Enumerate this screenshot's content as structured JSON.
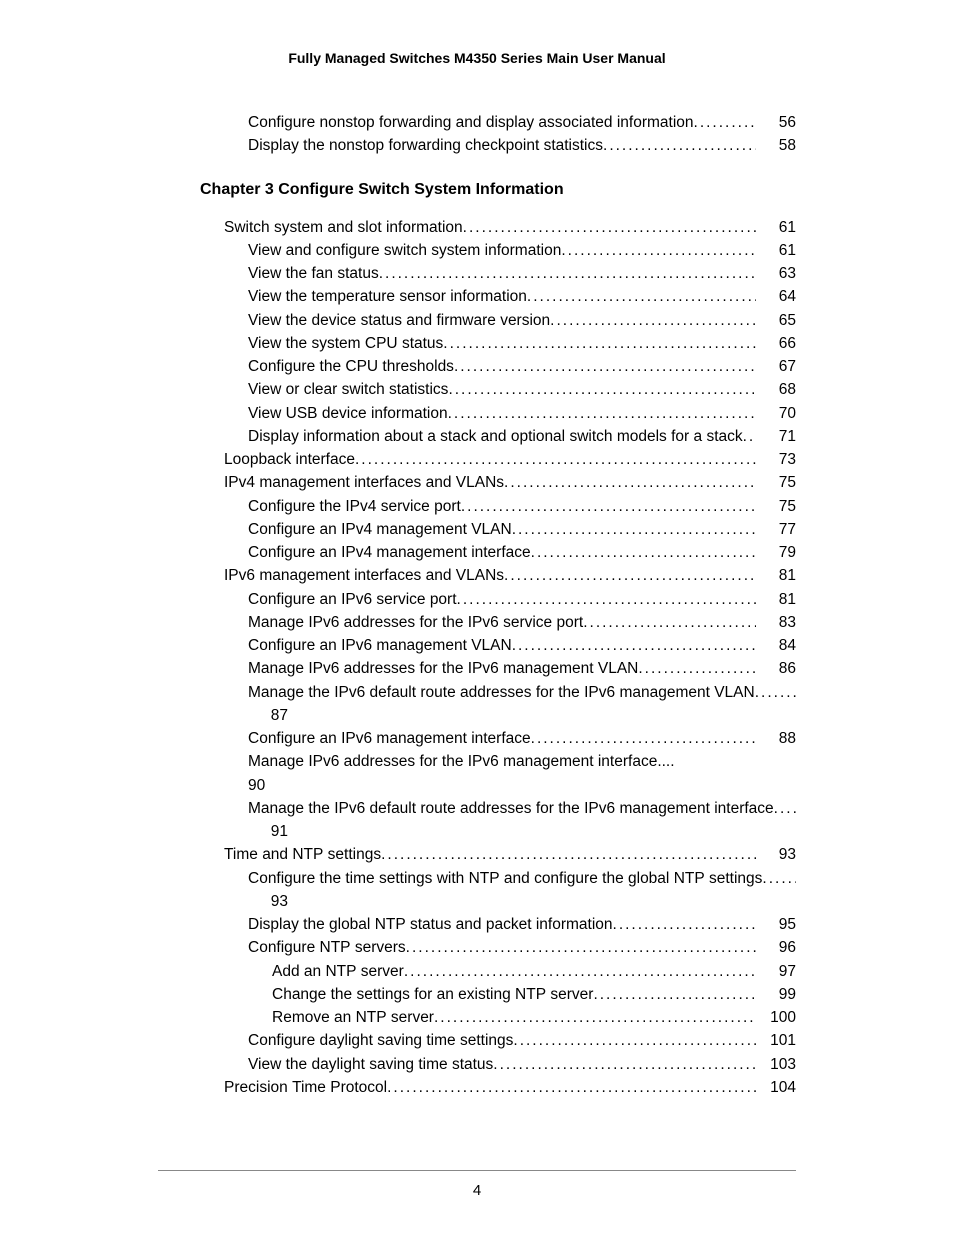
{
  "header": {
    "title": "Fully Managed Switches M4350 Series Main User Manual"
  },
  "preEntries": [
    {
      "text": "Configure nonstop forwarding and display associated information",
      "page": "56",
      "indent": 1,
      "leader": true
    },
    {
      "text": "Display the nonstop forwarding checkpoint statistics",
      "page": "58",
      "indent": 1,
      "leader": true
    }
  ],
  "chapter": {
    "title": "Chapter 3 Configure Switch System Information"
  },
  "entries": [
    {
      "text": "Switch system and slot information",
      "page": "61",
      "indent": 0,
      "leader": true
    },
    {
      "text": "View and configure switch system information",
      "page": "61",
      "indent": 1,
      "leader": true
    },
    {
      "text": "View the fan status",
      "page": "63",
      "indent": 1,
      "leader": true
    },
    {
      "text": "View the temperature sensor information",
      "page": "64",
      "indent": 1,
      "leader": true
    },
    {
      "text": "View the device status and firmware version",
      "page": "65",
      "indent": 1,
      "leader": true
    },
    {
      "text": "View the system CPU status",
      "page": "66",
      "indent": 1,
      "leader": true
    },
    {
      "text": "Configure the CPU thresholds",
      "page": "67",
      "indent": 1,
      "leader": true
    },
    {
      "text": "View or clear switch statistics",
      "page": "68",
      "indent": 1,
      "leader": true
    },
    {
      "text": "View USB device information",
      "page": "70",
      "indent": 1,
      "leader": true
    },
    {
      "text": "Display information about a stack and optional switch models for a stack",
      "page": "71",
      "indent": 1,
      "leader": true
    },
    {
      "text": "Loopback interface",
      "page": "73",
      "indent": 0,
      "leader": true
    },
    {
      "text": "IPv4 management interfaces and VLANs",
      "page": "75",
      "indent": 0,
      "leader": true
    },
    {
      "text": "Configure the IPv4 service port",
      "page": "75",
      "indent": 1,
      "leader": true
    },
    {
      "text": "Configure an IPv4 management VLAN",
      "page": "77",
      "indent": 1,
      "leader": true
    },
    {
      "text": "Configure an IPv4 management interface",
      "page": "79",
      "indent": 1,
      "leader": true
    },
    {
      "text": "IPv6 management interfaces and VLANs",
      "page": "81",
      "indent": 0,
      "leader": true
    },
    {
      "text": "Configure an IPv6 service port",
      "page": "81",
      "indent": 1,
      "leader": true
    },
    {
      "text": "Manage IPv6 addresses for the IPv6 service port",
      "page": "83",
      "indent": 1,
      "leader": true
    },
    {
      "text": "Configure an IPv6 management VLAN",
      "page": "84",
      "indent": 1,
      "leader": true
    },
    {
      "text": "Manage IPv6 addresses for the IPv6 management VLAN",
      "page": "86",
      "indent": 1,
      "leader": true
    },
    {
      "text": "Manage the IPv6 default route addresses for the IPv6 management VLAN",
      "page": "87",
      "indent": 1,
      "leader": true
    },
    {
      "text": "Configure an IPv6 management interface",
      "page": "88",
      "indent": 1,
      "leader": true
    },
    {
      "text": "Manage IPv6 addresses for the IPv6 management interface",
      "page": "90",
      "indent": 1,
      "leader": false
    },
    {
      "text": "Manage the IPv6 default route addresses for the IPv6 management interface",
      "page": "91",
      "indent": 1,
      "leader": true
    },
    {
      "text": "Time and NTP settings",
      "page": "93",
      "indent": 0,
      "leader": true
    },
    {
      "text": "Configure the time settings with NTP and configure the global NTP settings",
      "page": "93",
      "indent": 1,
      "leader": true
    },
    {
      "text": "Display the global NTP status and packet information",
      "page": "95",
      "indent": 1,
      "leader": true
    },
    {
      "text": "Configure NTP servers",
      "page": "96",
      "indent": 1,
      "leader": true
    },
    {
      "text": "Add an NTP server",
      "page": "97",
      "indent": 2,
      "leader": true
    },
    {
      "text": "Change the settings for an existing NTP server",
      "page": "99",
      "indent": 2,
      "leader": true
    },
    {
      "text": "Remove an NTP server",
      "page": "100",
      "indent": 2,
      "leader": true
    },
    {
      "text": "Configure daylight saving time settings",
      "page": "101",
      "indent": 1,
      "leader": true
    },
    {
      "text": "View the daylight saving time status",
      "page": "103",
      "indent": 1,
      "leader": true
    },
    {
      "text": "Precision Time Protocol",
      "page": "104",
      "indent": 0,
      "leader": true
    }
  ],
  "footer": {
    "pageNumber": "4"
  },
  "style": {
    "dots": "............................................................................................................................................................"
  }
}
